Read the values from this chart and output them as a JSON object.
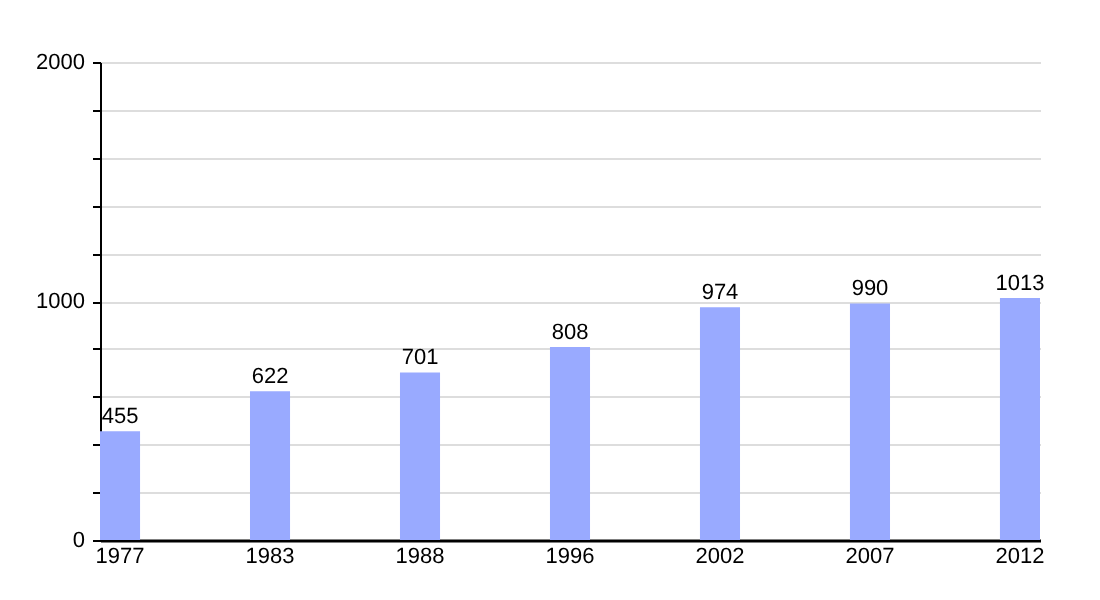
{
  "chart_data": {
    "type": "bar",
    "categories": [
      "1977",
      "1983",
      "1988",
      "1996",
      "2002",
      "2007",
      "2012"
    ],
    "values": [
      455,
      622,
      701,
      808,
      974,
      990,
      1013
    ],
    "color": "#99aaff",
    "ylim": [
      0,
      2000
    ],
    "yticks": [
      0,
      {
        "value": 200,
        "label": null
      },
      {
        "value": 400,
        "label": null
      },
      {
        "value": 600,
        "label": null
      },
      {
        "value": 800,
        "label": null
      },
      1000,
      {
        "value": 1200,
        "label": null
      },
      {
        "value": 1400,
        "label": null
      },
      {
        "value": 1600,
        "label": null
      },
      {
        "value": 1800,
        "label": null
      },
      2000
    ],
    "grid": "y",
    "data_labels": true
  }
}
